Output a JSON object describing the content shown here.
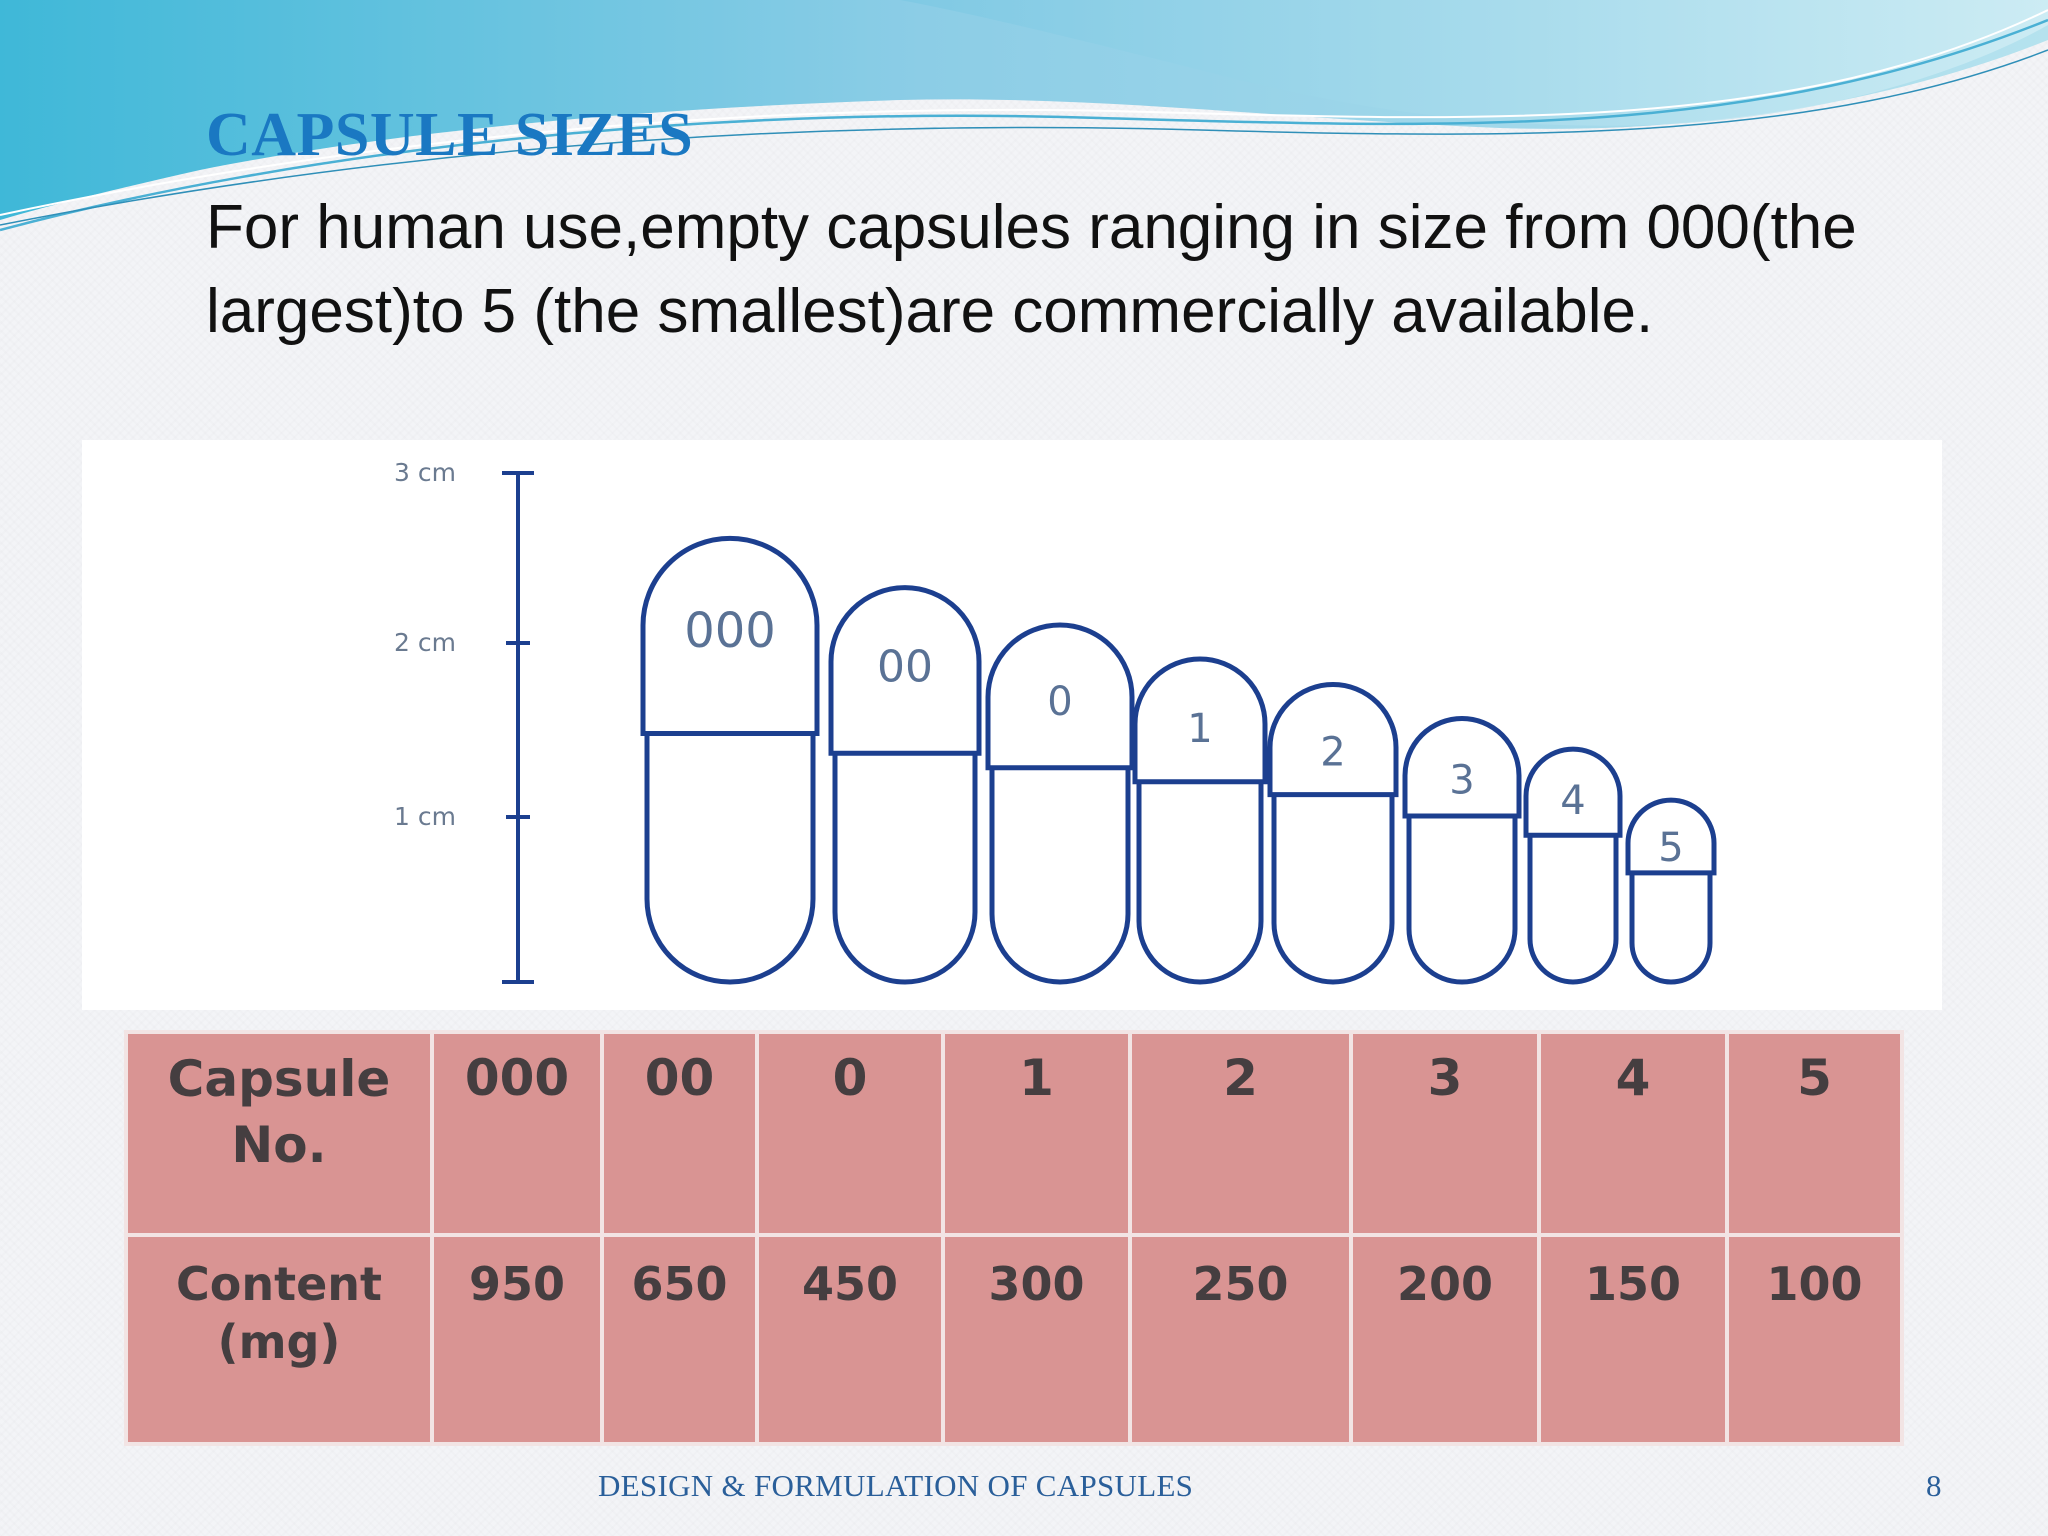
{
  "slide": {
    "title": "CAPSULE SIZES",
    "body": "For human use,empty capsules ranging in size from 000(the largest)to 5 (the smallest)are commercially available."
  },
  "figure": {
    "scale_labels": [
      "3 cm",
      "2 cm",
      "1 cm"
    ],
    "capsules": [
      {
        "label": "000",
        "length_cm": 2.61
      },
      {
        "label": "00",
        "length_cm": 2.32
      },
      {
        "label": "0",
        "length_cm": 2.1
      },
      {
        "label": "1",
        "length_cm": 1.9
      },
      {
        "label": "2",
        "length_cm": 1.75
      },
      {
        "label": "3",
        "length_cm": 1.55
      },
      {
        "label": "4",
        "length_cm": 1.37
      },
      {
        "label": "5",
        "length_cm": 1.07
      }
    ]
  },
  "table": {
    "header_label": "Capsule No.",
    "header_line1": "Capsule",
    "header_line2": "No.",
    "content_label": "Content (mg)",
    "content_line1": "Content",
    "content_line2": "(mg)",
    "sizes": [
      "000",
      "00",
      "0",
      "1",
      "2",
      "3",
      "4",
      "5"
    ],
    "contents": [
      "950",
      "650",
      "450",
      "300",
      "250",
      "200",
      "150",
      "100"
    ]
  },
  "footer": {
    "text": "DESIGN & FORMULATION OF CAPSULES",
    "page": "8"
  },
  "colors": {
    "title": "#1a78c2",
    "capsule_outline": "#1c3f8f",
    "table_cell": "#d99493",
    "footer": "#2a5f9a"
  }
}
